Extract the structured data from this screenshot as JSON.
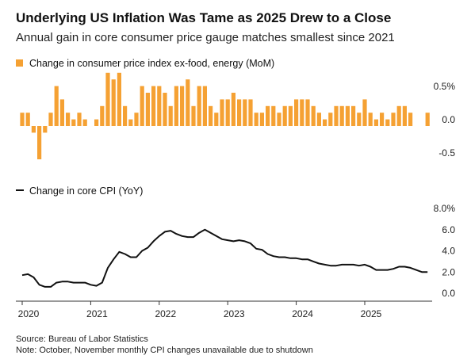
{
  "chart_data": [
    {
      "type": "bar",
      "title": "Underlying US Inflation Was Tame as 2025 Drew to a Close",
      "subtitle": "Annual gain in core consumer price gauge matches smallest since 2021",
      "legend": "Change in consumer price index ex-food, energy (MoM)",
      "color": "#f5a133",
      "values": [
        0.2,
        0.2,
        -0.1,
        -0.5,
        -0.1,
        0.2,
        0.6,
        0.4,
        0.2,
        0.1,
        0.2,
        0.1,
        0.0,
        0.1,
        0.3,
        0.8,
        0.7,
        0.8,
        0.3,
        0.1,
        0.2,
        0.6,
        0.5,
        0.6,
        0.6,
        0.5,
        0.3,
        0.6,
        0.6,
        0.7,
        0.3,
        0.6,
        0.6,
        0.3,
        0.2,
        0.4,
        0.4,
        0.5,
        0.4,
        0.4,
        0.4,
        0.2,
        0.2,
        0.3,
        0.3,
        0.2,
        0.3,
        0.3,
        0.4,
        0.4,
        0.4,
        0.3,
        0.2,
        0.1,
        0.2,
        0.3,
        0.3,
        0.3,
        0.3,
        0.2,
        0.4,
        0.2,
        0.1,
        0.2,
        0.1,
        0.2,
        0.3,
        0.3,
        0.2,
        null,
        null,
        0.2
      ],
      "ylim": [
        -0.6,
        0.9
      ],
      "yticks": [
        {
          "value": 0.5,
          "label": "0.5%"
        },
        {
          "value": 0,
          "label": "0.0"
        },
        -0.5
      ],
      "grid": false
    },
    {
      "type": "line",
      "legend": "Change in core CPI (YoY)",
      "color": "#111111",
      "categories": [
        "2020",
        null,
        null,
        null,
        null,
        null,
        null,
        null,
        null,
        null,
        null,
        null,
        "2021",
        null,
        null,
        null,
        null,
        null,
        null,
        null,
        null,
        null,
        null,
        null,
        "2022",
        null,
        null,
        null,
        null,
        null,
        null,
        null,
        null,
        null,
        null,
        null,
        "2023",
        null,
        null,
        null,
        null,
        null,
        null,
        null,
        null,
        null,
        null,
        null,
        "2024",
        null,
        null,
        null,
        null,
        null,
        null,
        null,
        null,
        null,
        null,
        null,
        "2025",
        null,
        null,
        null,
        null,
        null,
        null,
        null,
        null,
        null,
        null,
        null
      ],
      "values": [
        2.3,
        2.4,
        2.1,
        1.4,
        1.2,
        1.2,
        1.6,
        1.7,
        1.7,
        1.6,
        1.6,
        1.6,
        1.4,
        1.3,
        1.6,
        3.0,
        3.8,
        4.5,
        4.3,
        4.0,
        4.0,
        4.6,
        4.9,
        5.5,
        6.0,
        6.4,
        6.5,
        6.2,
        6.0,
        5.9,
        5.9,
        6.3,
        6.6,
        6.3,
        6.0,
        5.7,
        5.6,
        5.5,
        5.6,
        5.5,
        5.3,
        4.8,
        4.7,
        4.3,
        4.1,
        4.0,
        4.0,
        3.9,
        3.9,
        3.8,
        3.8,
        3.6,
        3.4,
        3.3,
        3.2,
        3.2,
        3.3,
        3.3,
        3.3,
        3.2,
        3.3,
        3.1,
        2.8,
        2.8,
        2.8,
        2.9,
        3.1,
        3.1,
        3.0,
        2.8,
        2.6,
        2.6
      ],
      "ylim": [
        0,
        8
      ],
      "yticks": [
        {
          "value": 0,
          "label": "0.0"
        },
        {
          "value": 2,
          "label": "2.0"
        },
        {
          "value": 4,
          "label": "4.0"
        },
        {
          "value": 6,
          "label": "6.0"
        },
        {
          "value": 8,
          "label": "8.0%"
        }
      ],
      "grid": false,
      "source": "Source: Bureau of Labor Statistics",
      "note": "Note: October, November monthly CPI changes unavailable due to shutdown"
    }
  ]
}
